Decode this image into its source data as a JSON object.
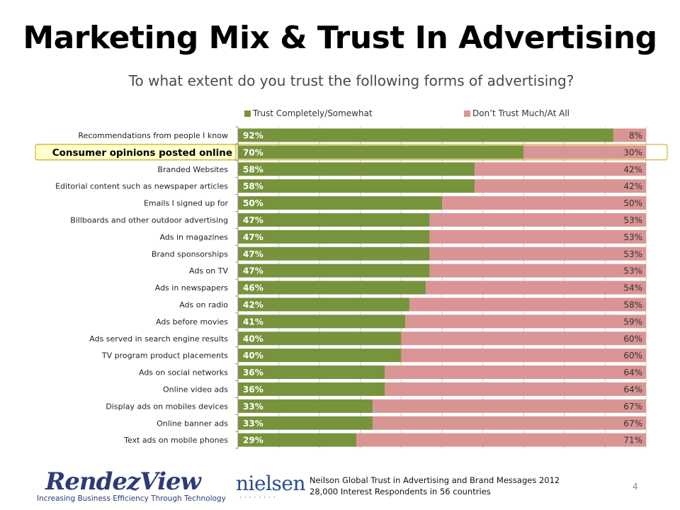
{
  "title": "Marketing Mix & Trust In Advertising",
  "subtitle": "To what extent do you trust the following forms of advertising?",
  "colors": {
    "trust": "#77933c",
    "dont_trust": "#d99594",
    "highlight_fill": "#ffffcc",
    "highlight_border": "#c8a000"
  },
  "chart_data": {
    "type": "bar",
    "orientation": "horizontal",
    "stacked": true,
    "percent_stacked": true,
    "categories": [
      "Recommendations from people I know",
      "Consumer opinions posted online",
      "Branded Websites",
      "Editorial content such as newspaper articles",
      "Emails I signed up for",
      "Billboards and other outdoor advertising",
      "Ads in magazines",
      "Brand sponsorships",
      "Ads on TV",
      "Ads in newspapers",
      "Ads on radio",
      "Ads before movies",
      "Ads served in search engine results",
      "TV program product placements",
      "Ads on social networks",
      "Online video ads",
      "Display ads on mobiles devices",
      "Online banner ads",
      "Text ads on mobile phones"
    ],
    "series": [
      {
        "name": "Trust Completely/Somewhat",
        "values": [
          92,
          70,
          58,
          58,
          50,
          47,
          47,
          47,
          47,
          46,
          42,
          41,
          40,
          40,
          36,
          36,
          33,
          33,
          29
        ],
        "labels": [
          "92%",
          "70%",
          "58%",
          "58%",
          "50%",
          "47%",
          "47%",
          "47%",
          "47%",
          "46%",
          "42%",
          "41%",
          "40%",
          "40%",
          "36%",
          "36%",
          "33%",
          "33%",
          "29%"
        ]
      },
      {
        "name": "Don’t Trust Much/At All",
        "values": [
          8,
          30,
          42,
          42,
          50,
          53,
          53,
          53,
          53,
          54,
          58,
          59,
          60,
          60,
          64,
          64,
          67,
          67,
          71
        ],
        "labels": [
          "8%",
          "30%",
          "42%",
          "42%",
          "50%",
          "53%",
          "53%",
          "53%",
          "53%",
          "54%",
          "58%",
          "59%",
          "60%",
          "60%",
          "64%",
          "64%",
          "67%",
          "67%",
          "71%"
        ]
      }
    ],
    "xlim": [
      0,
      100
    ],
    "grid": true,
    "legend": "top",
    "highlighted_category": "Consumer opinions posted online"
  },
  "footer": {
    "source_line1": "Neilson Global Trust in Advertising and Brand Messages 2012",
    "source_line2": "28,000 Interest Respondents in 56 countries",
    "page_number": "4"
  },
  "logos": {
    "rendezview_word": "RendezView",
    "rendezview_tagline": "Increasing Business Efficiency   Through Technology",
    "nielsen_word": "nielsen",
    "nielsen_dots": "········"
  }
}
